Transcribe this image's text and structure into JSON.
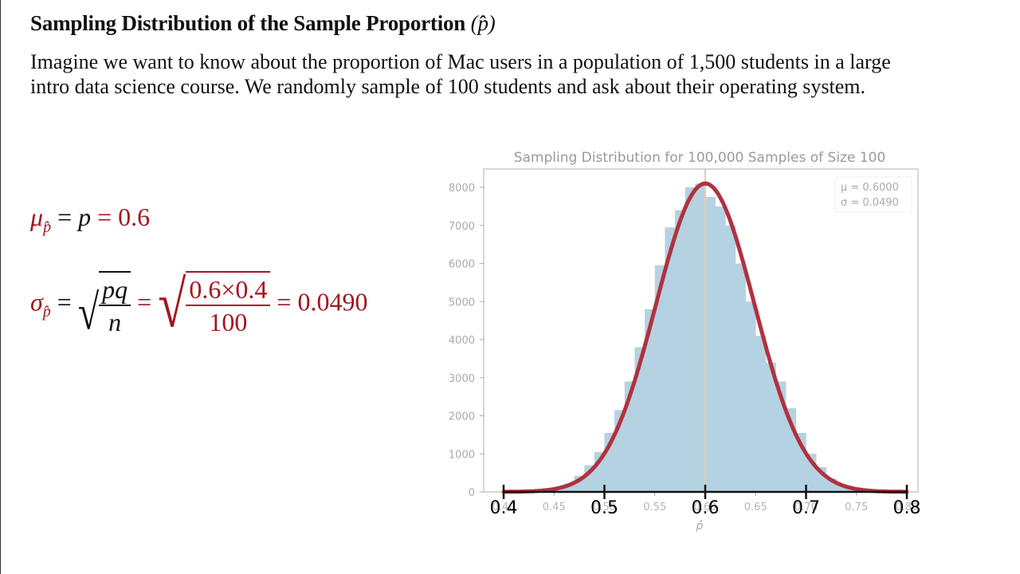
{
  "slide": {
    "title": "Sampling Distribution of the Sample Proportion",
    "title_symbol": "(p̂)",
    "intro_lines": [
      "Imagine we want to know about the proportion of Mac users in a population of 1,500 students in a large",
      "intro data science course. We randomly sample of 100 students and ask about their operating system."
    ]
  },
  "formulas": {
    "mean": {
      "lhs": "μ",
      "lhs_sub": "p̂",
      "eq1": "=",
      "mid": "p",
      "eq2": "=",
      "value": "0.6"
    },
    "sd": {
      "lhs": "σ",
      "lhs_sub": "p̂",
      "eq1": "=",
      "frac1_num": "pq",
      "frac1_den": "n",
      "eq2": "=",
      "frac2_num": "0.6×0.4",
      "frac2_den": "100",
      "eq3": "=",
      "value": "0.0490"
    }
  },
  "colors": {
    "accent_red": "#a3151f",
    "bar_fill": "#b5d2e2",
    "curve": "#b0323f",
    "mean_line": "#f2c9a6",
    "axis_gray": "#aaaaaa"
  },
  "chart_data": {
    "type": "bar",
    "title": "Sampling Distribution for 100,000 Samples of Size 100",
    "xlabel": "p̂",
    "ylabel": "",
    "xlim": [
      0.4,
      0.8
    ],
    "ylim": [
      0,
      8300
    ],
    "y_ticks": [
      "0",
      "1000",
      "2000",
      "3000",
      "4000",
      "5000",
      "6000",
      "7000",
      "8000"
    ],
    "x_ticks_small": [
      "0.40",
      "0.45",
      "0.50",
      "0.55",
      "0.60",
      "0.65",
      "0.70",
      "0.75",
      "0.80"
    ],
    "x_ticks_overlay": [
      "0.4",
      "0.5",
      "0.6",
      "0.7",
      "0.8"
    ],
    "legend": [
      "μ = 0.6000",
      "σ = 0.0490"
    ],
    "legend_position": "upper right",
    "grid": false,
    "bin_width": 0.01,
    "bin_starts": [
      0.44,
      0.45,
      0.46,
      0.47,
      0.48,
      0.49,
      0.5,
      0.51,
      0.52,
      0.53,
      0.54,
      0.55,
      0.56,
      0.57,
      0.58,
      0.59,
      0.6,
      0.61,
      0.62,
      0.63,
      0.64,
      0.65,
      0.66,
      0.67,
      0.68,
      0.69,
      0.7,
      0.71,
      0.72,
      0.73,
      0.74
    ],
    "values": [
      40,
      110,
      220,
      420,
      700,
      1050,
      1550,
      2150,
      2900,
      3800,
      4800,
      5950,
      6950,
      7400,
      8000,
      8100,
      7750,
      7500,
      7000,
      6000,
      5000,
      4100,
      3400,
      2900,
      2200,
      1550,
      1000,
      650,
      350,
      200,
      100
    ],
    "normal_curve": {
      "mu": 0.6,
      "sigma": 0.049,
      "peak": 8100
    },
    "mean_line_x": 0.6
  }
}
